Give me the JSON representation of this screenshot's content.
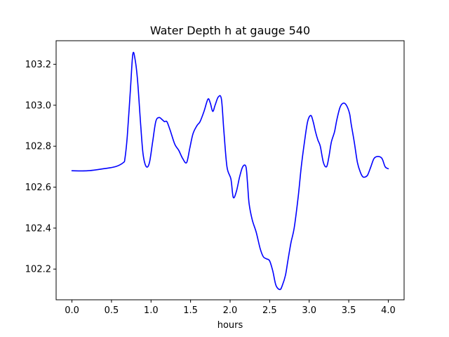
{
  "chart_data": {
    "type": "line",
    "title": "Water Depth h at gauge 540",
    "xlabel": "hours",
    "ylabel": "",
    "xlim": [
      -0.2,
      4.2
    ],
    "ylim": [
      102.05,
      103.315
    ],
    "xticks": [
      0.0,
      0.5,
      1.0,
      1.5,
      2.0,
      2.5,
      3.0,
      3.5,
      4.0
    ],
    "xtick_labels": [
      "0.0",
      "0.5",
      "1.0",
      "1.5",
      "2.0",
      "2.5",
      "3.0",
      "3.5",
      "4.0"
    ],
    "yticks": [
      102.2,
      102.4,
      102.6,
      102.8,
      103.0,
      103.2
    ],
    "ytick_labels": [
      "102.2",
      "102.4",
      "102.6",
      "102.8",
      "103.0",
      "103.2"
    ],
    "grid": false,
    "legend": "none",
    "series": [
      {
        "color": "#0000ff",
        "x": [
          0.0,
          0.2,
          0.4,
          0.55,
          0.65,
          0.67,
          0.7,
          0.74,
          0.77,
          0.8,
          0.83,
          0.87,
          0.9,
          0.94,
          0.98,
          1.02,
          1.06,
          1.1,
          1.14,
          1.17,
          1.2,
          1.24,
          1.3,
          1.35,
          1.4,
          1.45,
          1.49,
          1.53,
          1.58,
          1.62,
          1.67,
          1.72,
          1.75,
          1.78,
          1.81,
          1.85,
          1.89,
          1.92,
          1.96,
          2.01,
          2.04,
          2.08,
          2.12,
          2.16,
          2.2,
          2.22,
          2.24,
          2.28,
          2.33,
          2.38,
          2.42,
          2.46,
          2.5,
          2.54,
          2.58,
          2.63,
          2.66,
          2.7,
          2.73,
          2.77,
          2.81,
          2.86,
          2.9,
          2.94,
          2.98,
          3.02,
          3.05,
          3.08,
          3.11,
          3.14,
          3.18,
          3.22,
          3.25,
          3.28,
          3.32,
          3.35,
          3.39,
          3.43,
          3.47,
          3.51,
          3.53,
          3.57,
          3.61,
          3.65,
          3.68,
          3.71,
          3.74,
          3.78,
          3.82,
          3.87,
          3.92,
          3.96,
          4.0
        ],
        "y": [
          102.68,
          102.68,
          102.69,
          102.7,
          102.72,
          102.74,
          102.85,
          103.08,
          103.25,
          103.22,
          103.12,
          102.9,
          102.76,
          102.7,
          102.72,
          102.82,
          102.92,
          102.94,
          102.93,
          102.92,
          102.92,
          102.88,
          102.81,
          102.78,
          102.74,
          102.72,
          102.79,
          102.86,
          102.9,
          102.92,
          102.97,
          103.03,
          103.01,
          102.97,
          103.0,
          103.04,
          103.03,
          102.88,
          102.7,
          102.64,
          102.55,
          102.58,
          102.65,
          102.7,
          102.7,
          102.62,
          102.52,
          102.44,
          102.38,
          102.3,
          102.26,
          102.25,
          102.24,
          102.19,
          102.12,
          102.1,
          102.12,
          102.17,
          102.24,
          102.33,
          102.4,
          102.55,
          102.7,
          102.82,
          102.92,
          102.95,
          102.92,
          102.87,
          102.83,
          102.8,
          102.72,
          102.7,
          102.75,
          102.82,
          102.87,
          102.93,
          102.99,
          103.01,
          103.0,
          102.96,
          102.91,
          102.82,
          102.72,
          102.67,
          102.65,
          102.65,
          102.66,
          102.7,
          102.74,
          102.75,
          102.74,
          102.7,
          102.69
        ]
      }
    ]
  }
}
